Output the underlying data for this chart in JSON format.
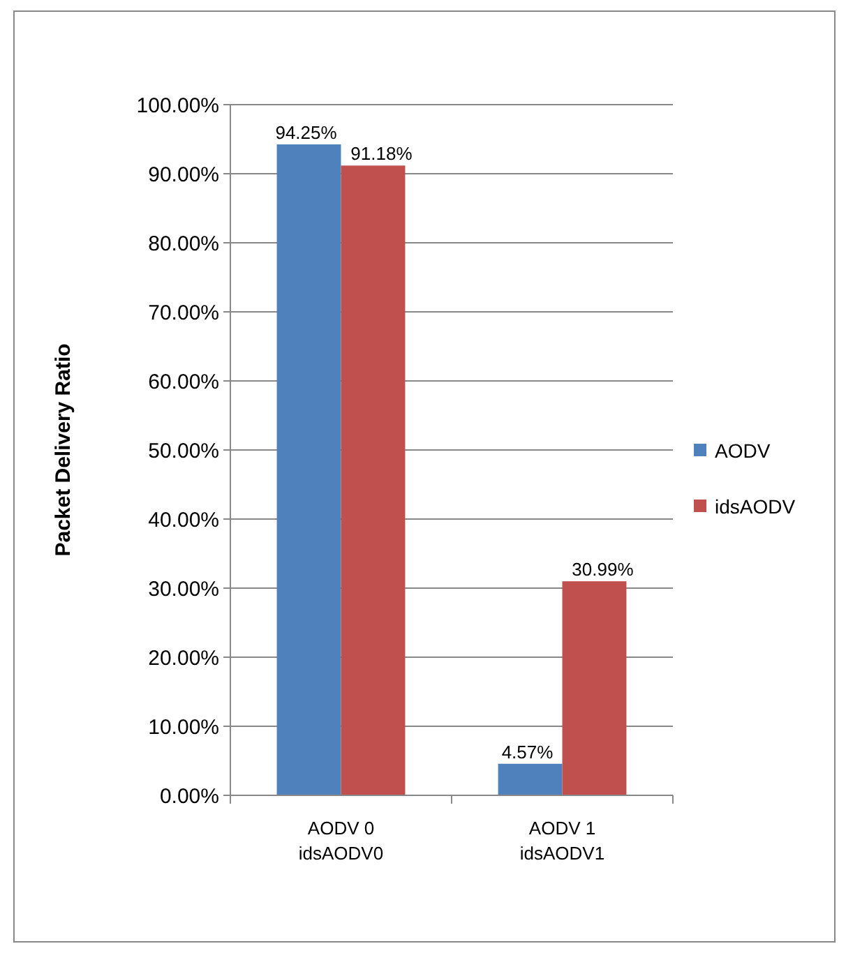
{
  "chart_data": {
    "type": "bar",
    "ylabel": "Packet Delivery Ratio",
    "categories": [
      "AODV 0\nidsAODV0",
      "AODV 1\nidsAODV1"
    ],
    "series": [
      {
        "name": "AODV",
        "color": "#4f81bd",
        "values": [
          94.25,
          4.57
        ],
        "value_labels": [
          "94.25%",
          "4.57%"
        ]
      },
      {
        "name": "idsAODV",
        "color": "#c0504d",
        "values": [
          91.18,
          30.99
        ],
        "value_labels": [
          "91.18%",
          "30.99%"
        ]
      }
    ],
    "ylim": [
      0,
      100
    ],
    "yticks": [
      {
        "value": 0,
        "label": "0.00%"
      },
      {
        "value": 10,
        "label": "10.00%"
      },
      {
        "value": 20,
        "label": "20.00%"
      },
      {
        "value": 30,
        "label": "30.00%"
      },
      {
        "value": 40,
        "label": "40.00%"
      },
      {
        "value": 50,
        "label": "50.00%"
      },
      {
        "value": 60,
        "label": "60.00%"
      },
      {
        "value": 70,
        "label": "70.00%"
      },
      {
        "value": 80,
        "label": "80.00%"
      },
      {
        "value": 90,
        "label": "90.00%"
      },
      {
        "value": 100,
        "label": "100.00%"
      }
    ],
    "grid": "y",
    "legend": "right"
  }
}
